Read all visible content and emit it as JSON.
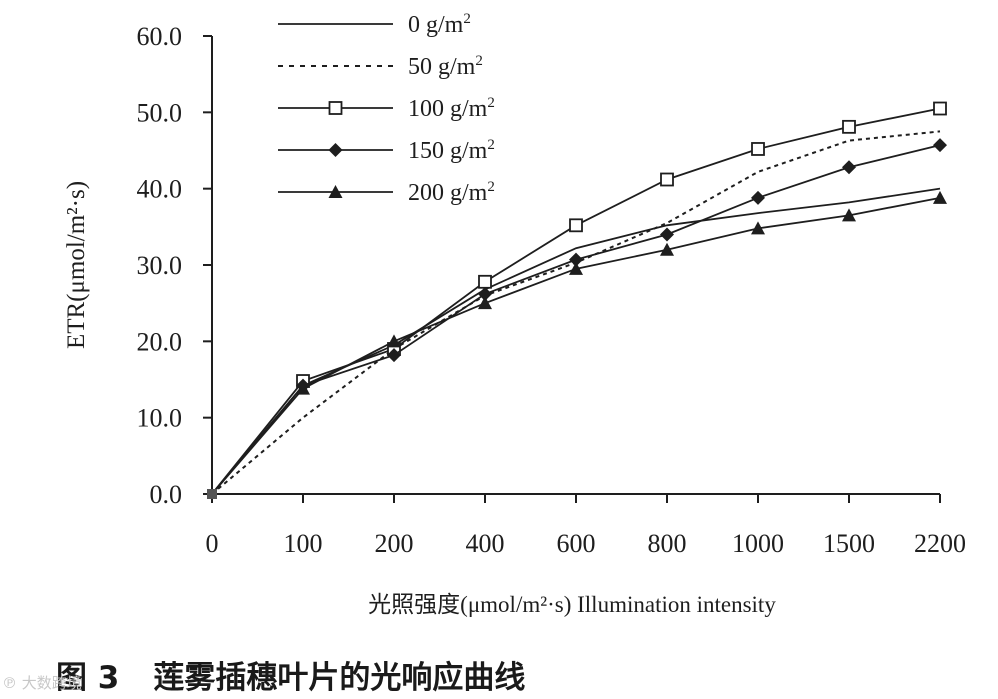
{
  "colors": {
    "line": "#1e1e1e",
    "background": "#ffffff",
    "watermark": "#c8c8c8"
  },
  "caption": {
    "figure_label": "图 3",
    "title": "莲雾插穗叶片的光响应曲线"
  },
  "watermark": {
    "text": "℗ 大数跨境"
  },
  "chart_data": {
    "type": "line",
    "xlabel": "光照强度(μmol/m²·s) Illumination intensity",
    "ylabel": "ETR(μmol/m²·s)",
    "categories": [
      "0",
      "100",
      "200",
      "400",
      "600",
      "800",
      "1000",
      "1500",
      "2200"
    ],
    "ylim": [
      0,
      60
    ],
    "yticks": [
      "0.0",
      "10.0",
      "20.0",
      "30.0",
      "40.0",
      "50.0",
      "60.0"
    ],
    "legend_position": "top-left",
    "grid": false,
    "series": [
      {
        "name": "0 g/m²",
        "label": "0 g/m",
        "sup": "2",
        "style": "solid",
        "marker": "none",
        "values": [
          0,
          14.2,
          19.5,
          26.8,
          32.2,
          35.2,
          36.8,
          38.2,
          40.0
        ]
      },
      {
        "name": "50 g/m²",
        "label": "50 g/m",
        "sup": "2",
        "style": "dotted",
        "marker": "none",
        "values": [
          0,
          10.0,
          19.0,
          26.0,
          30.3,
          35.5,
          42.2,
          46.3,
          47.5
        ]
      },
      {
        "name": "100 g/m²",
        "label": "100 g/m",
        "sup": "2",
        "style": "solid",
        "marker": "square",
        "values": [
          0,
          14.8,
          19.0,
          27.8,
          35.2,
          41.2,
          45.2,
          48.1,
          50.5
        ]
      },
      {
        "name": "150 g/m²",
        "label": "150 g/m",
        "sup": "2",
        "style": "solid",
        "marker": "diamond",
        "values": [
          0,
          14.2,
          18.2,
          26.2,
          30.7,
          34.0,
          38.8,
          42.8,
          45.7
        ]
      },
      {
        "name": "200 g/m²",
        "label": "200 g/m",
        "sup": "2",
        "style": "solid",
        "marker": "triangle",
        "values": [
          0,
          13.8,
          20.0,
          25.0,
          29.5,
          32.0,
          34.8,
          36.5,
          38.8
        ]
      }
    ]
  }
}
